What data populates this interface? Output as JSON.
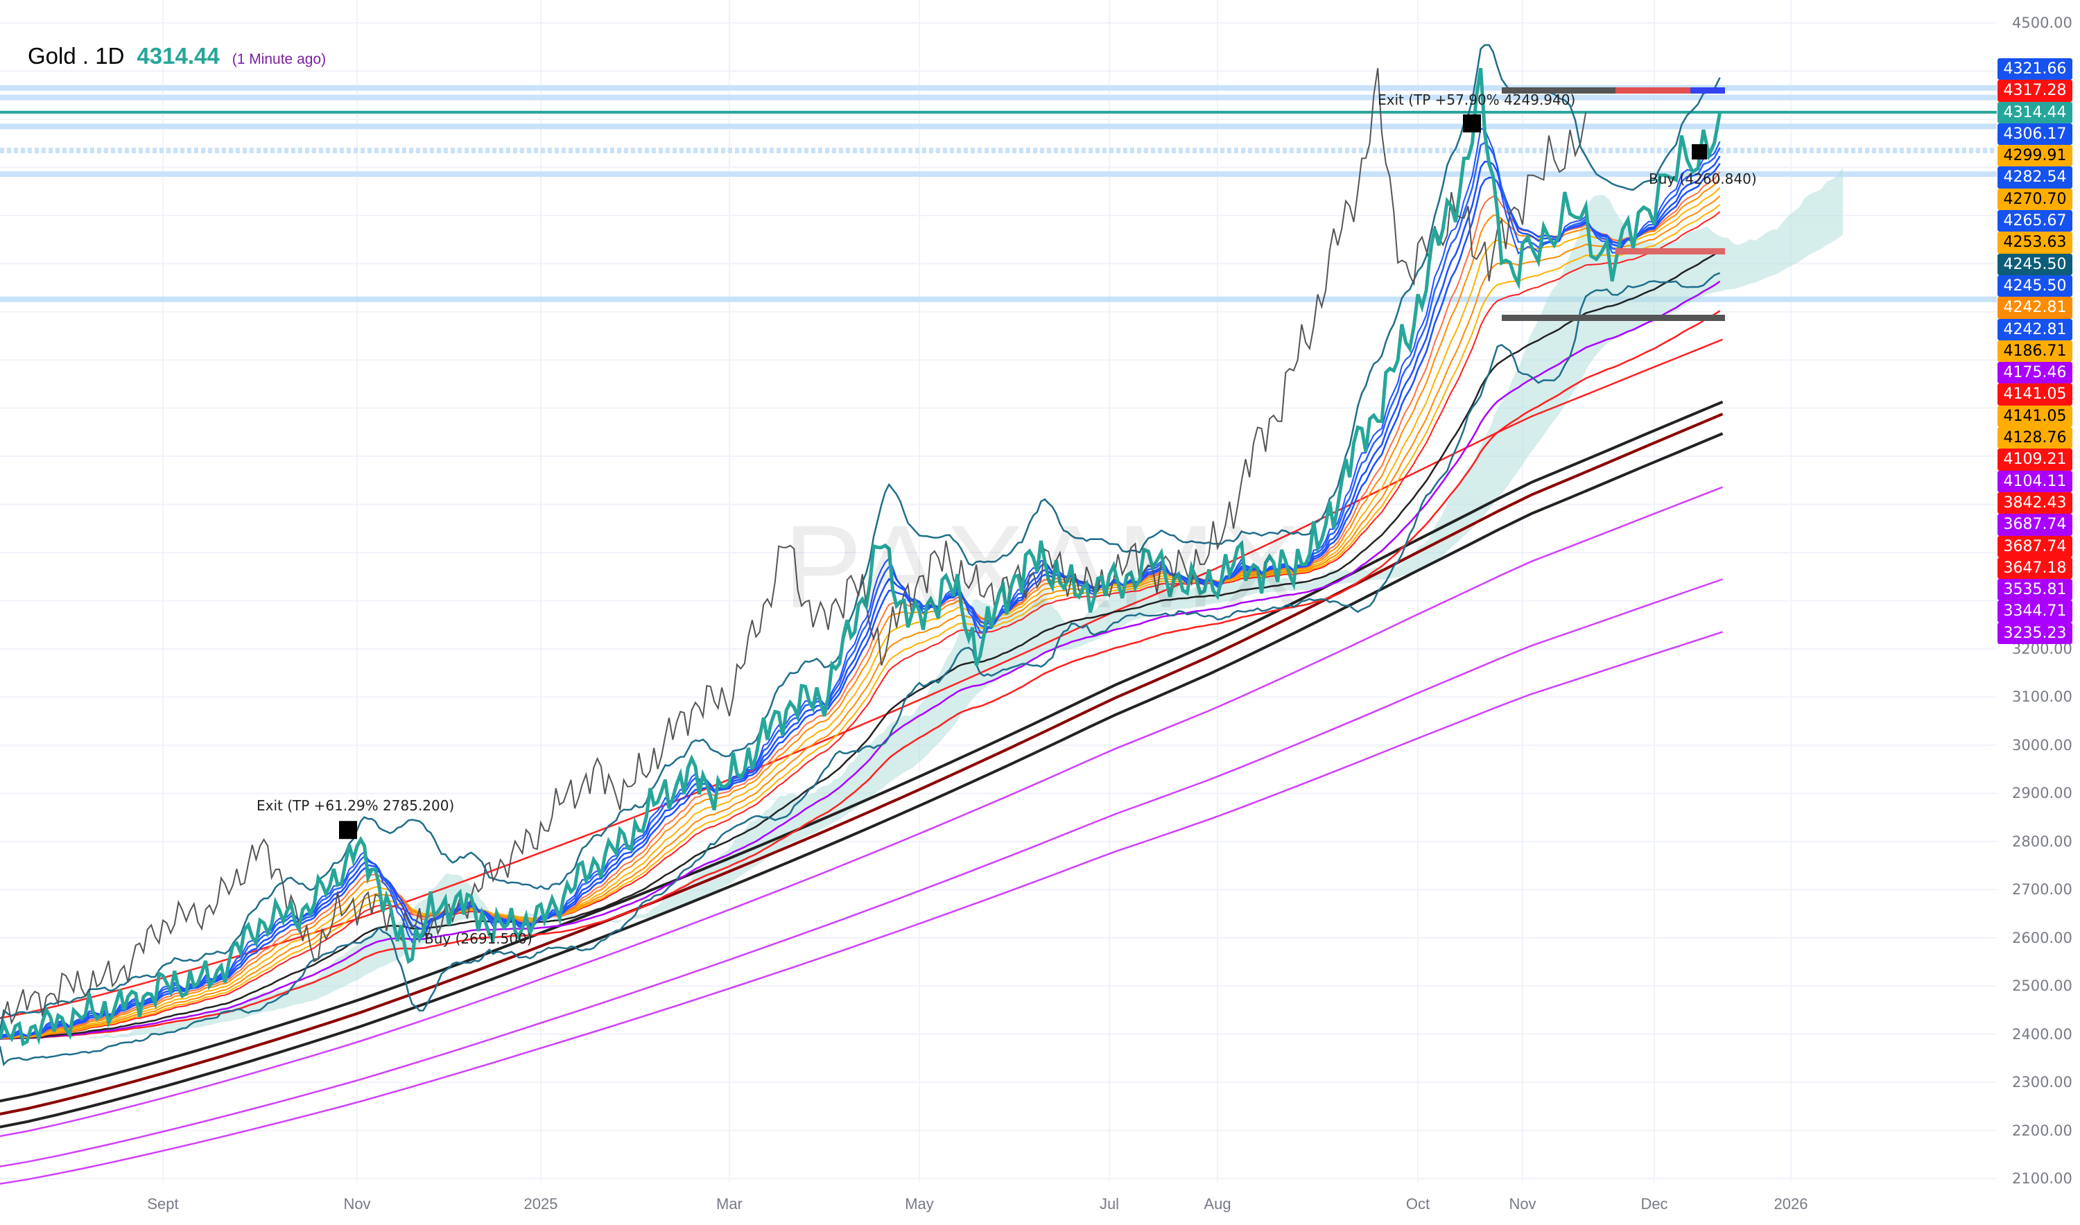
{
  "header": {
    "symbol": "Gold . 1D",
    "price": "4314.44",
    "updated": "(1 Minute ago)"
  },
  "watermark": "PAXAMX",
  "colors": {
    "price": "#26a69a",
    "grid": "#f0f3fa",
    "level": "#c8e2fa",
    "cloud": "#b2dfdb"
  },
  "chart_data": {
    "type": "line",
    "title": "Gold . 1D",
    "ylim": [
      2100,
      4500
    ],
    "y_ticks": [
      "4500.00",
      "3200.00",
      "3100.00",
      "3000.00",
      "2900.00",
      "2800.00",
      "2700.00",
      "2600.00",
      "2500.00",
      "2400.00",
      "2300.00",
      "2200.00",
      "2100.00"
    ],
    "x_ticks": [
      {
        "label": "Sept",
        "m": 0
      },
      {
        "label": "Nov",
        "m": 2
      },
      {
        "label": "2025",
        "m": 4
      },
      {
        "label": "Mar",
        "m": 6
      },
      {
        "label": "May",
        "m": 8
      },
      {
        "label": "Jul",
        "m": 10
      },
      {
        "label": "Aug",
        "m": 11
      },
      {
        "label": "Oct",
        "m": 13
      },
      {
        "label": "Nov",
        "m": 14
      },
      {
        "label": "Dec",
        "m": 15
      },
      {
        "label": "2026",
        "m": 16
      }
    ],
    "price_series": [
      [
        -1.68,
        2390
      ],
      [
        -1.2,
        2420
      ],
      [
        -0.8,
        2440
      ],
      [
        -0.3,
        2470
      ],
      [
        0,
        2500
      ],
      [
        0.5,
        2515
      ],
      [
        1,
        2630
      ],
      [
        1.5,
        2660
      ],
      [
        1.9,
        2760
      ],
      [
        2.0,
        2785
      ],
      [
        2.2,
        2740
      ],
      [
        2.4,
        2620
      ],
      [
        2.55,
        2570
      ],
      [
        2.8,
        2650
      ],
      [
        3.1,
        2680
      ],
      [
        3.5,
        2620
      ],
      [
        3.8,
        2630
      ],
      [
        4.0,
        2640
      ],
      [
        4.3,
        2700
      ],
      [
        4.6,
        2760
      ],
      [
        4.9,
        2800
      ],
      [
        5.3,
        2900
      ],
      [
        5.6,
        2940
      ],
      [
        5.9,
        2900
      ],
      [
        6.3,
        3000
      ],
      [
        6.6,
        3080
      ],
      [
        7.0,
        3100
      ],
      [
        7.3,
        3250
      ],
      [
        7.6,
        3420
      ],
      [
        7.8,
        3300
      ],
      [
        8.0,
        3250
      ],
      [
        8.3,
        3350
      ],
      [
        8.6,
        3200
      ],
      [
        9.0,
        3350
      ],
      [
        9.3,
        3390
      ],
      [
        9.6,
        3320
      ],
      [
        10.0,
        3330
      ],
      [
        10.4,
        3380
      ],
      [
        10.8,
        3320
      ],
      [
        11.2,
        3380
      ],
      [
        11.6,
        3360
      ],
      [
        12.0,
        3410
      ],
      [
        12.3,
        3580
      ],
      [
        12.6,
        3700
      ],
      [
        12.9,
        3850
      ],
      [
        13.2,
        4050
      ],
      [
        13.45,
        4200
      ],
      [
        13.6,
        4350
      ],
      [
        13.75,
        4120
      ],
      [
        13.9,
        3950
      ],
      [
        14.1,
        4050
      ],
      [
        14.4,
        4100
      ],
      [
        14.7,
        4000
      ],
      [
        15.0,
        4150
      ],
      [
        15.3,
        4220
      ],
      [
        15.5,
        4314.44
      ]
    ],
    "long_term_lines": [
      {
        "name": "red-ma",
        "color": "#ff2020",
        "start": 2433,
        "end": 3842.43
      },
      {
        "name": "black-ma-1",
        "color": "#222222",
        "start": 2261,
        "end": 3713
      },
      {
        "name": "darkred-ma",
        "color": "#8b0000",
        "start": 2234,
        "end": 3687.74
      },
      {
        "name": "black-ma-2",
        "color": "#222222",
        "start": 2207,
        "end": 3647.18
      },
      {
        "name": "magenta-ma-1",
        "color": "#d040fb",
        "start": 2188,
        "end": 3535.81
      },
      {
        "name": "magenta-ma-2",
        "color": "#d040fb",
        "start": 2125,
        "end": 3344.71
      },
      {
        "name": "magenta-ma-3",
        "color": "#d040fb",
        "start": 2089,
        "end": 3235.23
      }
    ],
    "levels": [
      4365,
      4345,
      4285,
      4235,
      4186,
      3926
    ],
    "current_price": 4314.44
  },
  "annotations": {
    "exit1": "Exit (TP +61.29% 2785.200)",
    "buy1": "Buy (2691.500)",
    "exit2": "Exit (TP +57.90% 4249.940)",
    "buy2": "Buy (4260.840)"
  },
  "price_labels": [
    {
      "text": "4321.66",
      "bg": "#1652f0",
      "fg": "#fff"
    },
    {
      "text": "4317.28",
      "bg": "#ff1010",
      "fg": "#fff"
    },
    {
      "text": "4314.44",
      "bg": "#26a69a",
      "fg": "#fff"
    },
    {
      "text": "4306.17",
      "bg": "#1652f0",
      "fg": "#fff"
    },
    {
      "text": "4299.91",
      "bg": "#ffad00",
      "fg": "#000"
    },
    {
      "text": "4282.54",
      "bg": "#1652f0",
      "fg": "#fff"
    },
    {
      "text": "4270.70",
      "bg": "#ffad00",
      "fg": "#000"
    },
    {
      "text": "4265.67",
      "bg": "#1652f0",
      "fg": "#fff"
    },
    {
      "text": "4253.63",
      "bg": "#ffad00",
      "fg": "#000"
    },
    {
      "text": "4245.50",
      "bg": "#0d5c7a",
      "fg": "#fff"
    },
    {
      "text": "4245.50",
      "bg": "#1652f0",
      "fg": "#fff"
    },
    {
      "text": "4242.81",
      "bg": "#ff8c00",
      "fg": "#fff"
    },
    {
      "text": "4242.81",
      "bg": "#1652f0",
      "fg": "#fff"
    },
    {
      "text": "4186.71",
      "bg": "#ffad00",
      "fg": "#000"
    },
    {
      "text": "4175.46",
      "bg": "#aa00ff",
      "fg": "#fff"
    },
    {
      "text": "4141.05",
      "bg": "#ff1010",
      "fg": "#fff"
    },
    {
      "text": "4141.05",
      "bg": "#ffad00",
      "fg": "#000"
    },
    {
      "text": "4128.76",
      "bg": "#ffad00",
      "fg": "#000"
    },
    {
      "text": "4109.21",
      "bg": "#ff1010",
      "fg": "#fff"
    },
    {
      "text": "4104.11",
      "bg": "#aa00ff",
      "fg": "#fff"
    },
    {
      "text": "3842.43",
      "bg": "#ff1010",
      "fg": "#fff"
    },
    {
      "text": "3687.74",
      "bg": "#aa00ff",
      "fg": "#fff"
    },
    {
      "text": "3687.74",
      "bg": "#ff1010",
      "fg": "#fff"
    },
    {
      "text": "3647.18",
      "bg": "#ff1010",
      "fg": "#fff"
    },
    {
      "text": "3535.81",
      "bg": "#aa00ff",
      "fg": "#fff"
    },
    {
      "text": "3344.71",
      "bg": "#aa00ff",
      "fg": "#fff"
    },
    {
      "text": "3235.23",
      "bg": "#aa00ff",
      "fg": "#fff"
    }
  ]
}
